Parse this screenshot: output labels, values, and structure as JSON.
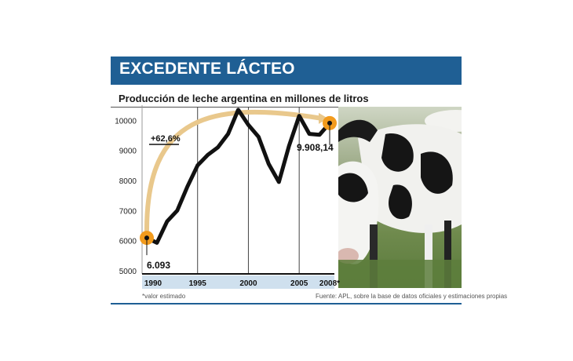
{
  "header": {
    "title": "EXCEDENTE LÁCTEO",
    "bar_color": "#1f5f94"
  },
  "chart_data": {
    "type": "line",
    "title": "Producción de leche argentina en millones de litros",
    "ylim": [
      5000,
      10400
    ],
    "yticks": [
      5000,
      6000,
      7000,
      8000,
      9000,
      10000
    ],
    "ytick_labels": [
      "5000",
      "6000",
      "7000",
      "8000",
      "9000",
      "10000"
    ],
    "xticks": [
      1990,
      1995,
      2000,
      2005,
      2008
    ],
    "xtick_labels": [
      "1990",
      "1995",
      "2000",
      "2005",
      "2008*"
    ],
    "grid": "vertical",
    "series": [
      {
        "color": "#111111",
        "x": [
          1990,
          1991,
          1992,
          1993,
          1994,
          1995,
          1996,
          1997,
          1998,
          1999,
          2000,
          2001,
          2002,
          2003,
          2004,
          2005,
          2006,
          2007,
          2008
        ],
        "y": [
          6093,
          5930,
          6640,
          7000,
          7800,
          8500,
          8850,
          9100,
          9550,
          10350,
          9850,
          9450,
          8550,
          7950,
          9150,
          10150,
          9550,
          9520,
          9908.14
        ]
      }
    ],
    "annotations": {
      "start_label": "6.093",
      "end_label": "9.908,14",
      "growth_label": "+62,6%"
    },
    "colors": {
      "highlight": "#f29b1d",
      "arc": "#e9c88c",
      "axis_band": "#cfe0ee"
    }
  },
  "footnotes": {
    "left": "*valor estimado",
    "right": "Fuente: APL, sobre la base de datos oficiales y estimaciones propias"
  }
}
